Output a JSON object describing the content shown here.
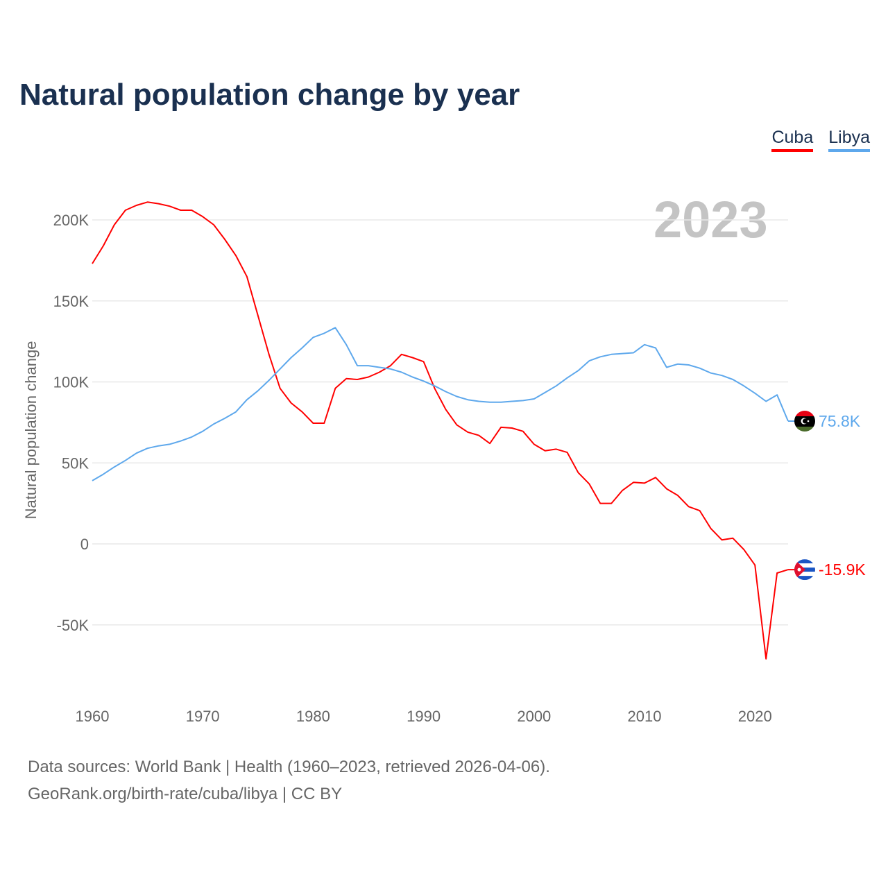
{
  "title": "Natural population change by year",
  "year_label": "2023",
  "footer": {
    "line1": "Data sources: World Bank | Health (1960–2023, retrieved 2026-04-06).",
    "line2": "GeoRank.org/birth-rate/cuba/libya | CC BY"
  },
  "chart_data": {
    "type": "line",
    "title": "Natural population change by year",
    "xlabel": "",
    "ylabel": "Natural population change",
    "xlim": [
      1960,
      2023
    ],
    "ylim": [
      -90000,
      230000
    ],
    "yticks": [
      -50000,
      0,
      50000,
      100000,
      150000,
      200000
    ],
    "ytick_labels": [
      "-50K",
      "0",
      "50K",
      "100K",
      "150K",
      "200K"
    ],
    "xticks": [
      1960,
      1970,
      1980,
      1990,
      2000,
      2010,
      2020
    ],
    "xtick_labels": [
      "1960",
      "1970",
      "1980",
      "1990",
      "2000",
      "2010",
      "2020"
    ],
    "grid": true,
    "legend_position": "top-right",
    "x": [
      1960,
      1961,
      1962,
      1963,
      1964,
      1965,
      1966,
      1967,
      1968,
      1969,
      1970,
      1971,
      1972,
      1973,
      1974,
      1975,
      1976,
      1977,
      1978,
      1979,
      1980,
      1981,
      1982,
      1983,
      1984,
      1985,
      1986,
      1987,
      1988,
      1989,
      1990,
      1991,
      1992,
      1993,
      1994,
      1995,
      1996,
      1997,
      1998,
      1999,
      2000,
      2001,
      2002,
      2003,
      2004,
      2005,
      2006,
      2007,
      2008,
      2009,
      2010,
      2011,
      2012,
      2013,
      2014,
      2015,
      2016,
      2017,
      2018,
      2019,
      2020,
      2021,
      2022,
      2023
    ],
    "series": [
      {
        "name": "Cuba",
        "color": "#ff0000",
        "end_label": "-15.9K",
        "flag": "cuba-flag",
        "values": [
          173000,
          184000,
          197000,
          206000,
          209000,
          211000,
          210000,
          208500,
          206000,
          206000,
          202000,
          197000,
          188000,
          178000,
          165000,
          141000,
          117000,
          96000,
          87000,
          81500,
          74500,
          74500,
          96000,
          102000,
          101500,
          103000,
          106000,
          110000,
          117000,
          115000,
          112500,
          96000,
          83000,
          73500,
          69000,
          67000,
          62000,
          72000,
          71500,
          69500,
          61500,
          57500,
          58500,
          56500,
          44000,
          37000,
          25000,
          25000,
          33000,
          38000,
          37500,
          41000,
          34000,
          30000,
          23000,
          20500,
          9500,
          2500,
          3500,
          -3500,
          -13000,
          -71000,
          -18000,
          -15900
        ]
      },
      {
        "name": "Libya",
        "color": "#5ea8ec",
        "end_label": "75.8K",
        "flag": "libya-flag",
        "values": [
          39000,
          43000,
          47500,
          51500,
          56000,
          59000,
          60500,
          61500,
          63500,
          66000,
          69500,
          74000,
          77500,
          81500,
          89000,
          94500,
          101000,
          108000,
          115000,
          121000,
          127500,
          130000,
          133500,
          123000,
          110000,
          110000,
          109000,
          108000,
          106000,
          103000,
          100500,
          97500,
          94000,
          91000,
          89000,
          88000,
          87500,
          87500,
          88000,
          88500,
          89500,
          93500,
          97500,
          102500,
          107000,
          113000,
          115500,
          117000,
          117500,
          118000,
          123000,
          121000,
          109000,
          111000,
          110500,
          108500,
          105500,
          104000,
          101500,
          97500,
          93000,
          88000,
          92000,
          75800
        ]
      }
    ]
  }
}
